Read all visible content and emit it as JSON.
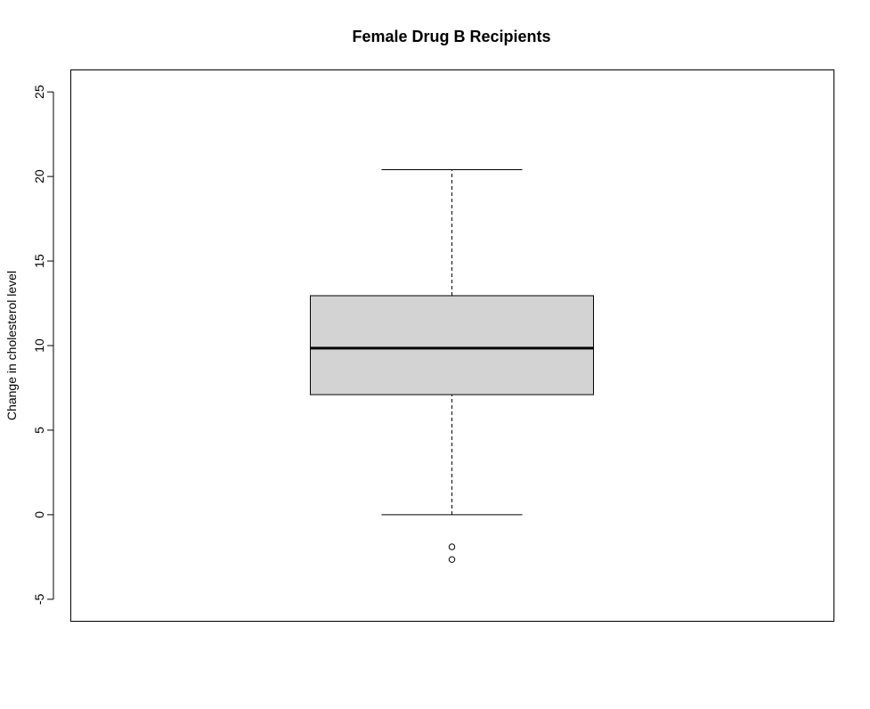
{
  "chart_data": {
    "type": "boxplot",
    "title": "Female Drug B Recipients",
    "xlabel": "",
    "ylabel": "Change in cholesterol level",
    "ylim": [
      -6.3,
      26.3
    ],
    "y_ticks": [
      "-5",
      "0",
      "5",
      "10",
      "15",
      "20",
      "25"
    ],
    "grid": false,
    "box": {
      "whisker_low": 0,
      "q1": 7.1,
      "median": 9.85,
      "q3": 12.95,
      "whisker_high": 20.4,
      "outliers": [
        -1.9,
        -2.65
      ]
    },
    "colors": {
      "box_fill": "#d3d3d3",
      "stroke": "#000000"
    }
  }
}
